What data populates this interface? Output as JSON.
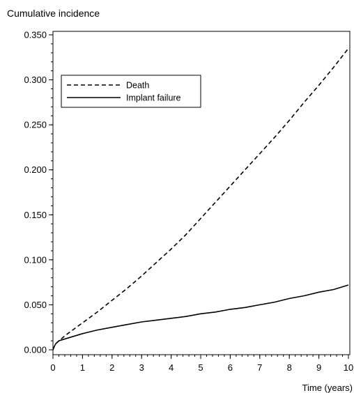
{
  "chart_data": {
    "type": "line",
    "ylabel": "Cumulative incidence",
    "xlabel": "Time (years)",
    "xlim": [
      0,
      10
    ],
    "ylim": [
      0,
      0.35
    ],
    "xticks": [
      "0",
      "1",
      "2",
      "3",
      "4",
      "5",
      "6",
      "7",
      "8",
      "9",
      "10"
    ],
    "yticks": [
      "0.000",
      "0.050",
      "0.100",
      "0.150",
      "0.200",
      "0.250",
      "0.300",
      "0.350"
    ],
    "grid": false,
    "legend_position": "upper-left",
    "series": [
      {
        "name": "Death",
        "style": "dashed",
        "color": "#000000",
        "x": [
          0,
          0.05,
          0.1,
          0.2,
          0.5,
          1,
          1.5,
          2,
          2.5,
          3,
          3.5,
          4,
          4.5,
          5,
          5.5,
          6,
          6.5,
          7,
          7.5,
          8,
          8.5,
          9,
          9.5,
          10
        ],
        "y": [
          0.0,
          0.004,
          0.007,
          0.01,
          0.018,
          0.03,
          0.042,
          0.055,
          0.068,
          0.082,
          0.097,
          0.112,
          0.128,
          0.146,
          0.164,
          0.182,
          0.2,
          0.218,
          0.236,
          0.255,
          0.275,
          0.294,
          0.314,
          0.335
        ]
      },
      {
        "name": "Implant failure",
        "style": "solid",
        "color": "#000000",
        "x": [
          0,
          0.05,
          0.1,
          0.2,
          0.5,
          1,
          1.5,
          2,
          2.5,
          3,
          3.5,
          4,
          4.5,
          5,
          5.5,
          6,
          6.5,
          7,
          7.5,
          8,
          8.5,
          9,
          9.5,
          10
        ],
        "y": [
          0.0,
          0.004,
          0.007,
          0.01,
          0.013,
          0.018,
          0.022,
          0.025,
          0.028,
          0.031,
          0.033,
          0.035,
          0.037,
          0.04,
          0.042,
          0.045,
          0.047,
          0.05,
          0.053,
          0.057,
          0.06,
          0.064,
          0.067,
          0.072
        ]
      }
    ]
  }
}
